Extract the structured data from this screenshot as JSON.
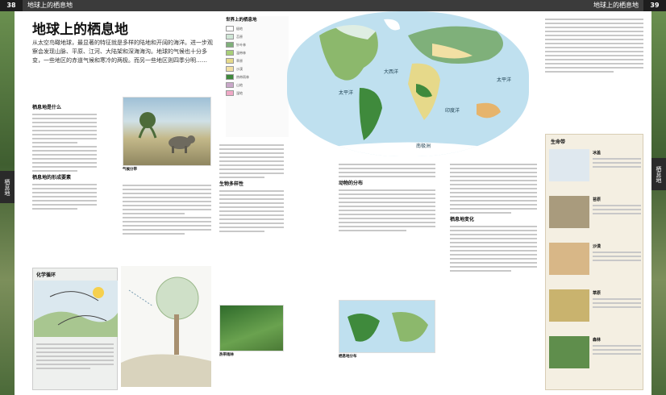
{
  "page": {
    "left_page_number": "38",
    "right_page_number": "39",
    "running_head_left": "地球上的栖息地",
    "running_head_right": "地球上的栖息地",
    "side_tab_left": "栖息地",
    "side_tab_right": "栖息地"
  },
  "article": {
    "title": "地球上的栖息地",
    "intro": "从太空鸟瞰地球，最显著的特征就是多样的陆地和开阔的海洋。进一步观察会发现山脉、平原、江河、大陆架和深海海沟。地球的气候也十分多变，一些地区的赤道气候和寒冷的两极。而另一些地区则四季分明……"
  },
  "sections": {
    "habitat": "栖息地是什么",
    "formation": "栖息地的形成要素",
    "biodiversity": "生物多样性",
    "animal_distribution": "动物的分布",
    "habitat_change": "栖息地变化"
  },
  "legend": {
    "title": "世界上的栖息地",
    "items": [
      {
        "label": "极地",
        "color": "#ffffff"
      },
      {
        "label": "苔原",
        "color": "#cfe6d6"
      },
      {
        "label": "针叶林",
        "color": "#7fb07a"
      },
      {
        "label": "温带林",
        "color": "#a8cf78"
      },
      {
        "label": "草原",
        "color": "#e6d98a"
      },
      {
        "label": "沙漠",
        "color": "#f2e0a4"
      },
      {
        "label": "热带雨林",
        "color": "#3f8a3c"
      },
      {
        "label": "山地",
        "color": "#c9a7c9"
      },
      {
        "label": "湿地",
        "color": "#f0a9c6"
      }
    ]
  },
  "map": {
    "labels": {
      "pacific_left": "太平洋",
      "atlantic": "大西洋",
      "pacific_right": "太平洋",
      "indian": "印度洋",
      "antarctica": "南极洲"
    }
  },
  "captions": {
    "biome": "气候分带",
    "chem": "化学循环",
    "tropical": "热带雨林",
    "map_small": "栖息地分布"
  },
  "sidebar": {
    "title": "生命带",
    "rows": [
      {
        "name": "冰盖"
      },
      {
        "name": "苔原"
      },
      {
        "name": "沙漠"
      },
      {
        "name": "草原"
      },
      {
        "name": "森林"
      }
    ]
  }
}
